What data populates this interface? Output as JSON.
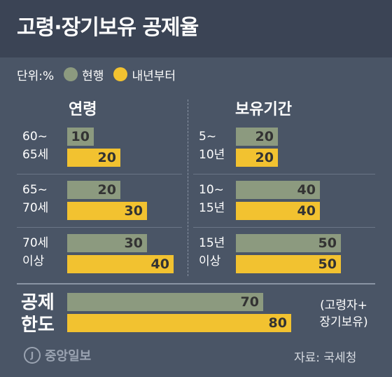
{
  "title": "고령·장기보유 공제율",
  "legend": {
    "unit": "단위:%",
    "current": "현행",
    "next": "내년부터",
    "current_color": "#8c9a7f",
    "next_color": "#f2c230"
  },
  "chart_data": [
    {
      "type": "bar",
      "title": "연령",
      "categories": [
        "60~ 65세",
        "65~ 70세",
        "70세 이상"
      ],
      "series": [
        {
          "name": "현행",
          "values": [
            10,
            20,
            30
          ]
        },
        {
          "name": "내년부터",
          "values": [
            20,
            30,
            40
          ]
        }
      ]
    },
    {
      "type": "bar",
      "title": "보유기간",
      "categories": [
        "5~ 10년",
        "10~ 15년",
        "15년 이상"
      ],
      "series": [
        {
          "name": "현행",
          "values": [
            20,
            40,
            50
          ]
        },
        {
          "name": "내년부터",
          "values": [
            20,
            40,
            50
          ]
        }
      ]
    },
    {
      "type": "bar",
      "title": "",
      "categories": [
        "공제 한도"
      ],
      "series": [
        {
          "name": "현행",
          "values": [
            70
          ]
        },
        {
          "name": "내년부터",
          "values": [
            80
          ]
        }
      ]
    }
  ],
  "age": {
    "rows": [
      {
        "line1": "60~",
        "line2": "65세"
      },
      {
        "line1": "65~",
        "line2": "70세"
      },
      {
        "line1": "70세",
        "line2": "이상"
      }
    ]
  },
  "holding": {
    "rows": [
      {
        "line1": "5~",
        "line2": "10년"
      },
      {
        "line1": "10~",
        "line2": "15년"
      },
      {
        "line1": "15년",
        "line2": "이상"
      }
    ]
  },
  "limit": {
    "line1": "공제",
    "line2": "한도",
    "note1": "(고령자+",
    "note2": "장기보유)"
  },
  "footer": {
    "logo": "중앙일보",
    "source": "자료: 국세청"
  }
}
